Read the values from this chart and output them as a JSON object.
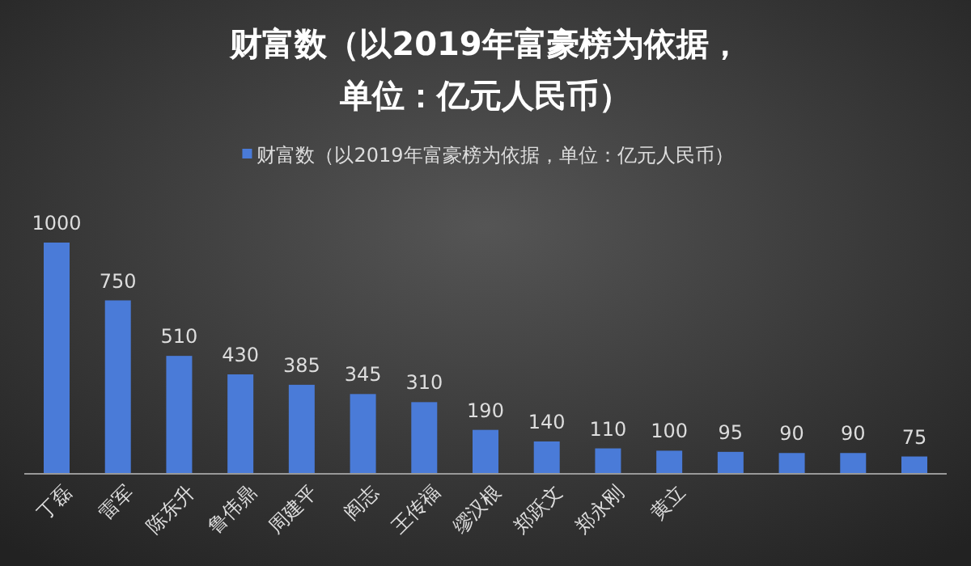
{
  "chart_data": {
    "type": "bar",
    "title": "财富数（以2019年富豪榜为依据，单位：亿元人民币）",
    "categories": [
      "丁磊",
      "雷军",
      "陈东升",
      "鲁伟鼎",
      "周建平",
      "阎志",
      "王传福",
      "缪汉根",
      "郑跃文",
      "郑永刚",
      "黄立",
      null,
      null,
      null,
      null
    ],
    "series": [
      {
        "name": "财富数（以2019年富豪榜为依据，单位：亿元人民币）",
        "color": "#4a7bd8",
        "values": [
          1000,
          750,
          510,
          430,
          385,
          345,
          310,
          190,
          140,
          110,
          100,
          95,
          90,
          90,
          75
        ]
      }
    ],
    "data_labels": true,
    "legend": "top"
  }
}
